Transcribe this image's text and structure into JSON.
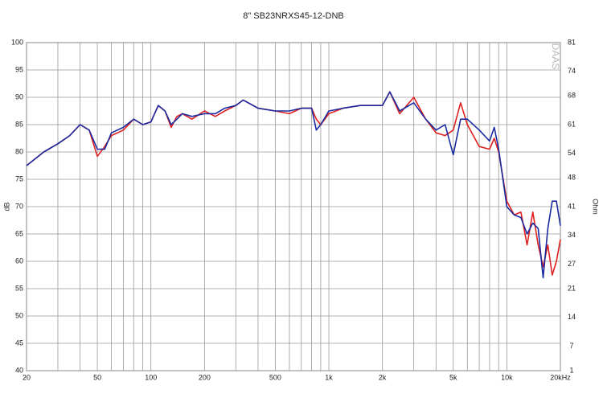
{
  "chart_data": {
    "type": "line",
    "title": "8\" SB23NRXS45-12-DNB",
    "ylabel": "dB",
    "y2label": "Ohm",
    "watermark": "DAAS",
    "xscale": "log",
    "grid": true,
    "xlim": [
      20,
      20000
    ],
    "xticks": [
      20,
      50,
      100,
      200,
      500,
      {
        "value": 1000,
        "label": "1k"
      },
      {
        "value": 2000,
        "label": "2k"
      },
      {
        "value": 5000,
        "label": "5k"
      },
      {
        "value": 10000,
        "label": "10k"
      },
      {
        "value": 20000,
        "label": "20kHz"
      }
    ],
    "xminor_ticks": [
      30,
      40,
      60,
      70,
      80,
      90,
      300,
      400,
      600,
      700,
      800,
      900,
      3000,
      4000,
      6000,
      7000,
      8000,
      9000
    ],
    "ylim": [
      40,
      100
    ],
    "yticks": [
      40,
      45,
      50,
      55,
      60,
      65,
      70,
      75,
      80,
      85,
      90,
      95,
      100
    ],
    "y2lim": [
      1,
      81
    ],
    "y2ticks": [
      1,
      7,
      14,
      21,
      27,
      34,
      41,
      48,
      54,
      61,
      68,
      74,
      81
    ],
    "x": [
      20,
      25,
      30,
      35,
      40,
      45,
      50,
      55,
      60,
      70,
      80,
      90,
      100,
      110,
      120,
      130,
      140,
      150,
      170,
      200,
      230,
      260,
      300,
      330,
      400,
      500,
      600,
      700,
      800,
      850,
      900,
      1000,
      1200,
      1500,
      2000,
      2200,
      2500,
      3000,
      3500,
      4000,
      4500,
      5000,
      5500,
      6000,
      7000,
      8000,
      8500,
      9000,
      10000,
      11000,
      12000,
      13000,
      14000,
      15000,
      16000,
      17000,
      18000,
      19000,
      20000
    ],
    "series": [
      {
        "color": "#e02020",
        "values": [
          77.5,
          80,
          81.5,
          83,
          85,
          84,
          79.2,
          81,
          83,
          84,
          86,
          85,
          85.5,
          88.5,
          87.5,
          84.5,
          86.5,
          87,
          86,
          87.5,
          86.5,
          87.5,
          88.5,
          89.5,
          88,
          87.5,
          87,
          88,
          88,
          86,
          85,
          87,
          88,
          88.5,
          88.5,
          91,
          87,
          90,
          86,
          83.5,
          83,
          84,
          89,
          85,
          81,
          80.5,
          82.5,
          80,
          71,
          68.5,
          69,
          63,
          69,
          63,
          59,
          63,
          57.5,
          60,
          64
        ]
      },
      {
        "color": "#1a2aa0",
        "values": [
          77.5,
          80,
          81.5,
          83,
          85,
          84,
          80.5,
          80.5,
          83.5,
          84.5,
          86,
          85,
          85.5,
          88.5,
          87.5,
          85,
          86,
          87,
          86.5,
          87,
          87,
          88,
          88.5,
          89.5,
          88,
          87.5,
          87.5,
          88,
          88,
          84,
          85,
          87.5,
          88,
          88.5,
          88.5,
          91,
          87.5,
          89,
          86,
          84,
          85,
          79.5,
          86,
          86,
          84,
          82,
          84.5,
          80.5,
          70,
          68.5,
          68,
          65,
          67,
          66,
          57,
          66,
          71,
          71,
          66.5
        ]
      }
    ]
  }
}
